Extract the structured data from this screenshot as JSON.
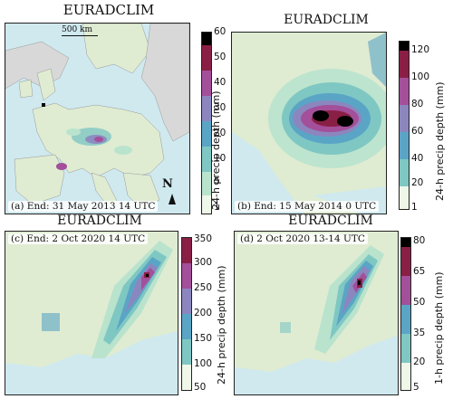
{
  "colors": {
    "sea": "#cfe9ef",
    "land_gray": "#d8d8d8",
    "land_green": "#dfecd2",
    "scale_1": "#eef7e8",
    "scale_2": "#b9e3cd",
    "scale_3": "#7fc7c3",
    "scale_4": "#5aa5c5",
    "scale_5": "#8c86bf",
    "scale_6": "#a34f9a",
    "scale_7": "#8a1f45",
    "scale_top": "#000000"
  },
  "panels": [
    {
      "id": "a",
      "title": "EURADCLIM",
      "caption": "(a) End: 31 May 2013 14 UTC",
      "scale_label": "500 km",
      "north_label": "N",
      "colorbar": {
        "label": "24-h precip depth (mm)",
        "ticks": [
          "60",
          "50",
          "40",
          "30",
          "20",
          "10",
          "5",
          "1"
        ]
      }
    },
    {
      "id": "b",
      "title": "EURADCLIM",
      "caption": "(b) End: 15 May 2014 0 UTC",
      "colorbar": {
        "label": "24-h precip depth (mm)",
        "ticks": [
          "120",
          "100",
          "80",
          "60",
          "40",
          "20",
          "1"
        ]
      }
    },
    {
      "id": "c",
      "title": "EURADCLIM",
      "caption": "(c) End: 2 Oct 2020 14 UTC",
      "colorbar": {
        "label": "24-h precip depth (mm)",
        "ticks": [
          "350",
          "300",
          "250",
          "200",
          "150",
          "100",
          "50"
        ]
      }
    },
    {
      "id": "d",
      "title": "EURADCLIM",
      "caption": "(d) 2 Oct 2020 13-14 UTC",
      "colorbar": {
        "label": "1-h precip depth (mm)",
        "ticks": [
          "80",
          "65",
          "50",
          "35",
          "20",
          "5"
        ]
      }
    }
  ]
}
